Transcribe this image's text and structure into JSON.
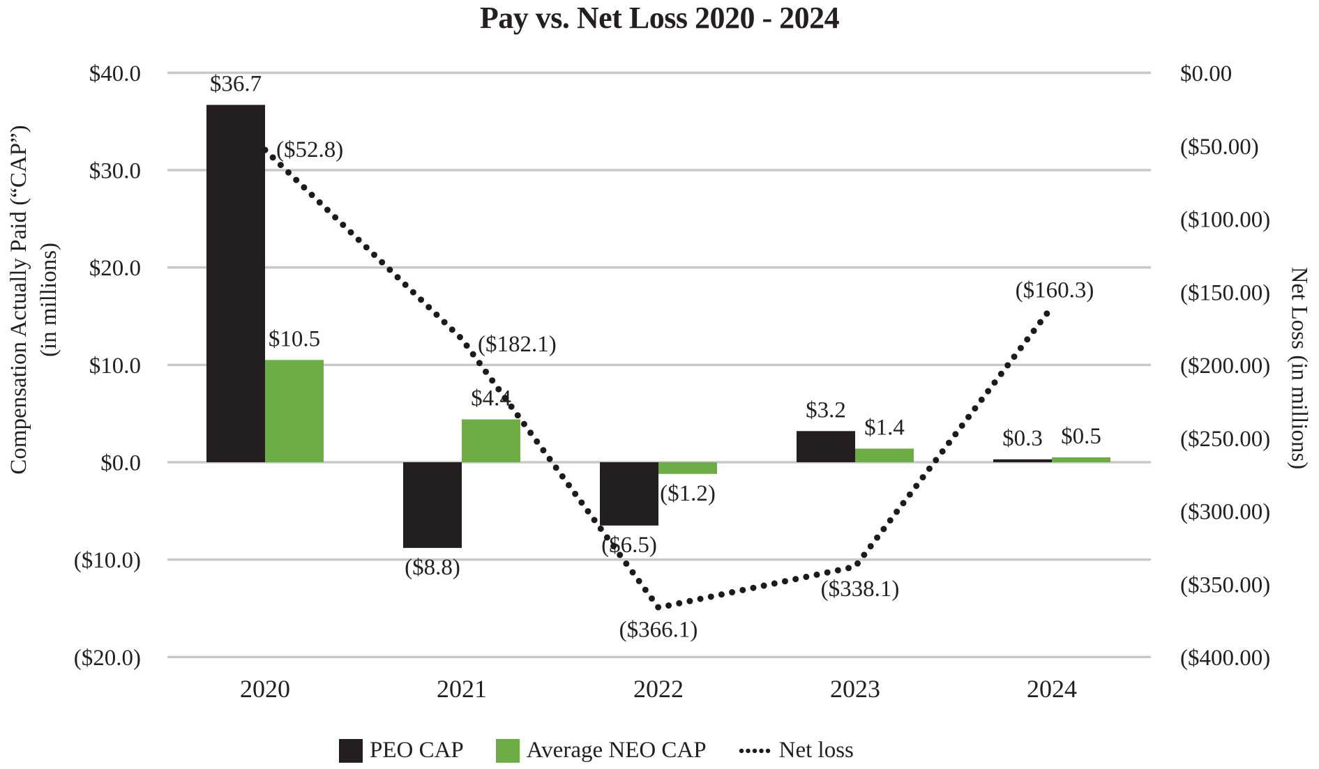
{
  "title": "Pay vs. Net Loss 2020 - 2024",
  "left_axis": {
    "title_line1": "Compensation Actually Paid (“CAP”)",
    "title_line2": "(in millions)",
    "ticks": [
      "$40.0",
      "$30.0",
      "$20.0",
      "$10.0",
      "$0.0",
      "($10.0)",
      "($20.0)"
    ]
  },
  "right_axis": {
    "title": "Net Loss (in millions)",
    "ticks": [
      "$0.00",
      "($50.00)",
      "($100.00)",
      "($150.00)",
      "($200.00)",
      "($250.00)",
      "($300.00)",
      "($350.00)",
      "($400.00)"
    ]
  },
  "legend": {
    "items": [
      {
        "label": "PEO CAP",
        "swatch": "black-square",
        "color": "#231f20"
      },
      {
        "label": "Average NEO CAP",
        "swatch": "green-square",
        "color": "#6cae45"
      },
      {
        "label": "Net loss",
        "swatch": "dotted-line",
        "color": "#1d1a1b"
      }
    ]
  },
  "colors": {
    "grid": "#c8c8c8",
    "text": "#231f20",
    "background": "#ffffff",
    "peo_bar": "#231f20",
    "neo_bar": "#6cae45",
    "net_loss_line": "#1d1a1b"
  },
  "chart_data": {
    "type": "bar",
    "subtype": "combo-bar-line-secondary-axis",
    "title": "Pay vs. Net Loss 2020 - 2024",
    "categories": [
      "2020",
      "2021",
      "2022",
      "2023",
      "2024"
    ],
    "series": [
      {
        "name": "PEO CAP",
        "type": "bar",
        "axis": "left",
        "color": "#231f20",
        "values": [
          36.7,
          -8.8,
          -6.5,
          3.2,
          0.3
        ],
        "labels": [
          "$36.7",
          "($8.8)",
          "($6.5)",
          "$3.2",
          "$0.3"
        ]
      },
      {
        "name": "Average NEO CAP",
        "type": "bar",
        "axis": "left",
        "color": "#6cae45",
        "values": [
          10.5,
          4.4,
          -1.2,
          1.4,
          0.5
        ],
        "labels": [
          "$10.5",
          "$4.4",
          "($1.2)",
          "$1.4",
          "$0.5"
        ]
      },
      {
        "name": "Net loss",
        "type": "line",
        "style": "dotted",
        "axis": "right",
        "color": "#1d1a1b",
        "values": [
          -52.8,
          -182.1,
          -366.1,
          -338.1,
          -160.3
        ],
        "labels": [
          "($52.8)",
          "($182.1)",
          "($366.1)",
          "($338.1)",
          "($160.3)"
        ],
        "label_offsets": [
          {
            "dx": 16,
            "dy": 10,
            "anchor": "start"
          },
          {
            "dx": 23,
            "dy": 18,
            "anchor": "start"
          },
          {
            "dx": 0,
            "dy": 42,
            "anchor": "middle"
          },
          {
            "dx": 7,
            "dy": 42,
            "anchor": "middle"
          },
          {
            "dx": 4,
            "dy": -14,
            "anchor": "middle"
          }
        ]
      }
    ],
    "left_axis_label": "Compensation Actually Paid (“CAP”) (in millions)",
    "right_axis_label": "Net Loss (in millions)",
    "left_ylim": [
      -20,
      40
    ],
    "right_ylim": [
      -400,
      0
    ],
    "left_tick_step": 10,
    "right_tick_step": 50,
    "grid": true,
    "legend_position": "bottom"
  }
}
